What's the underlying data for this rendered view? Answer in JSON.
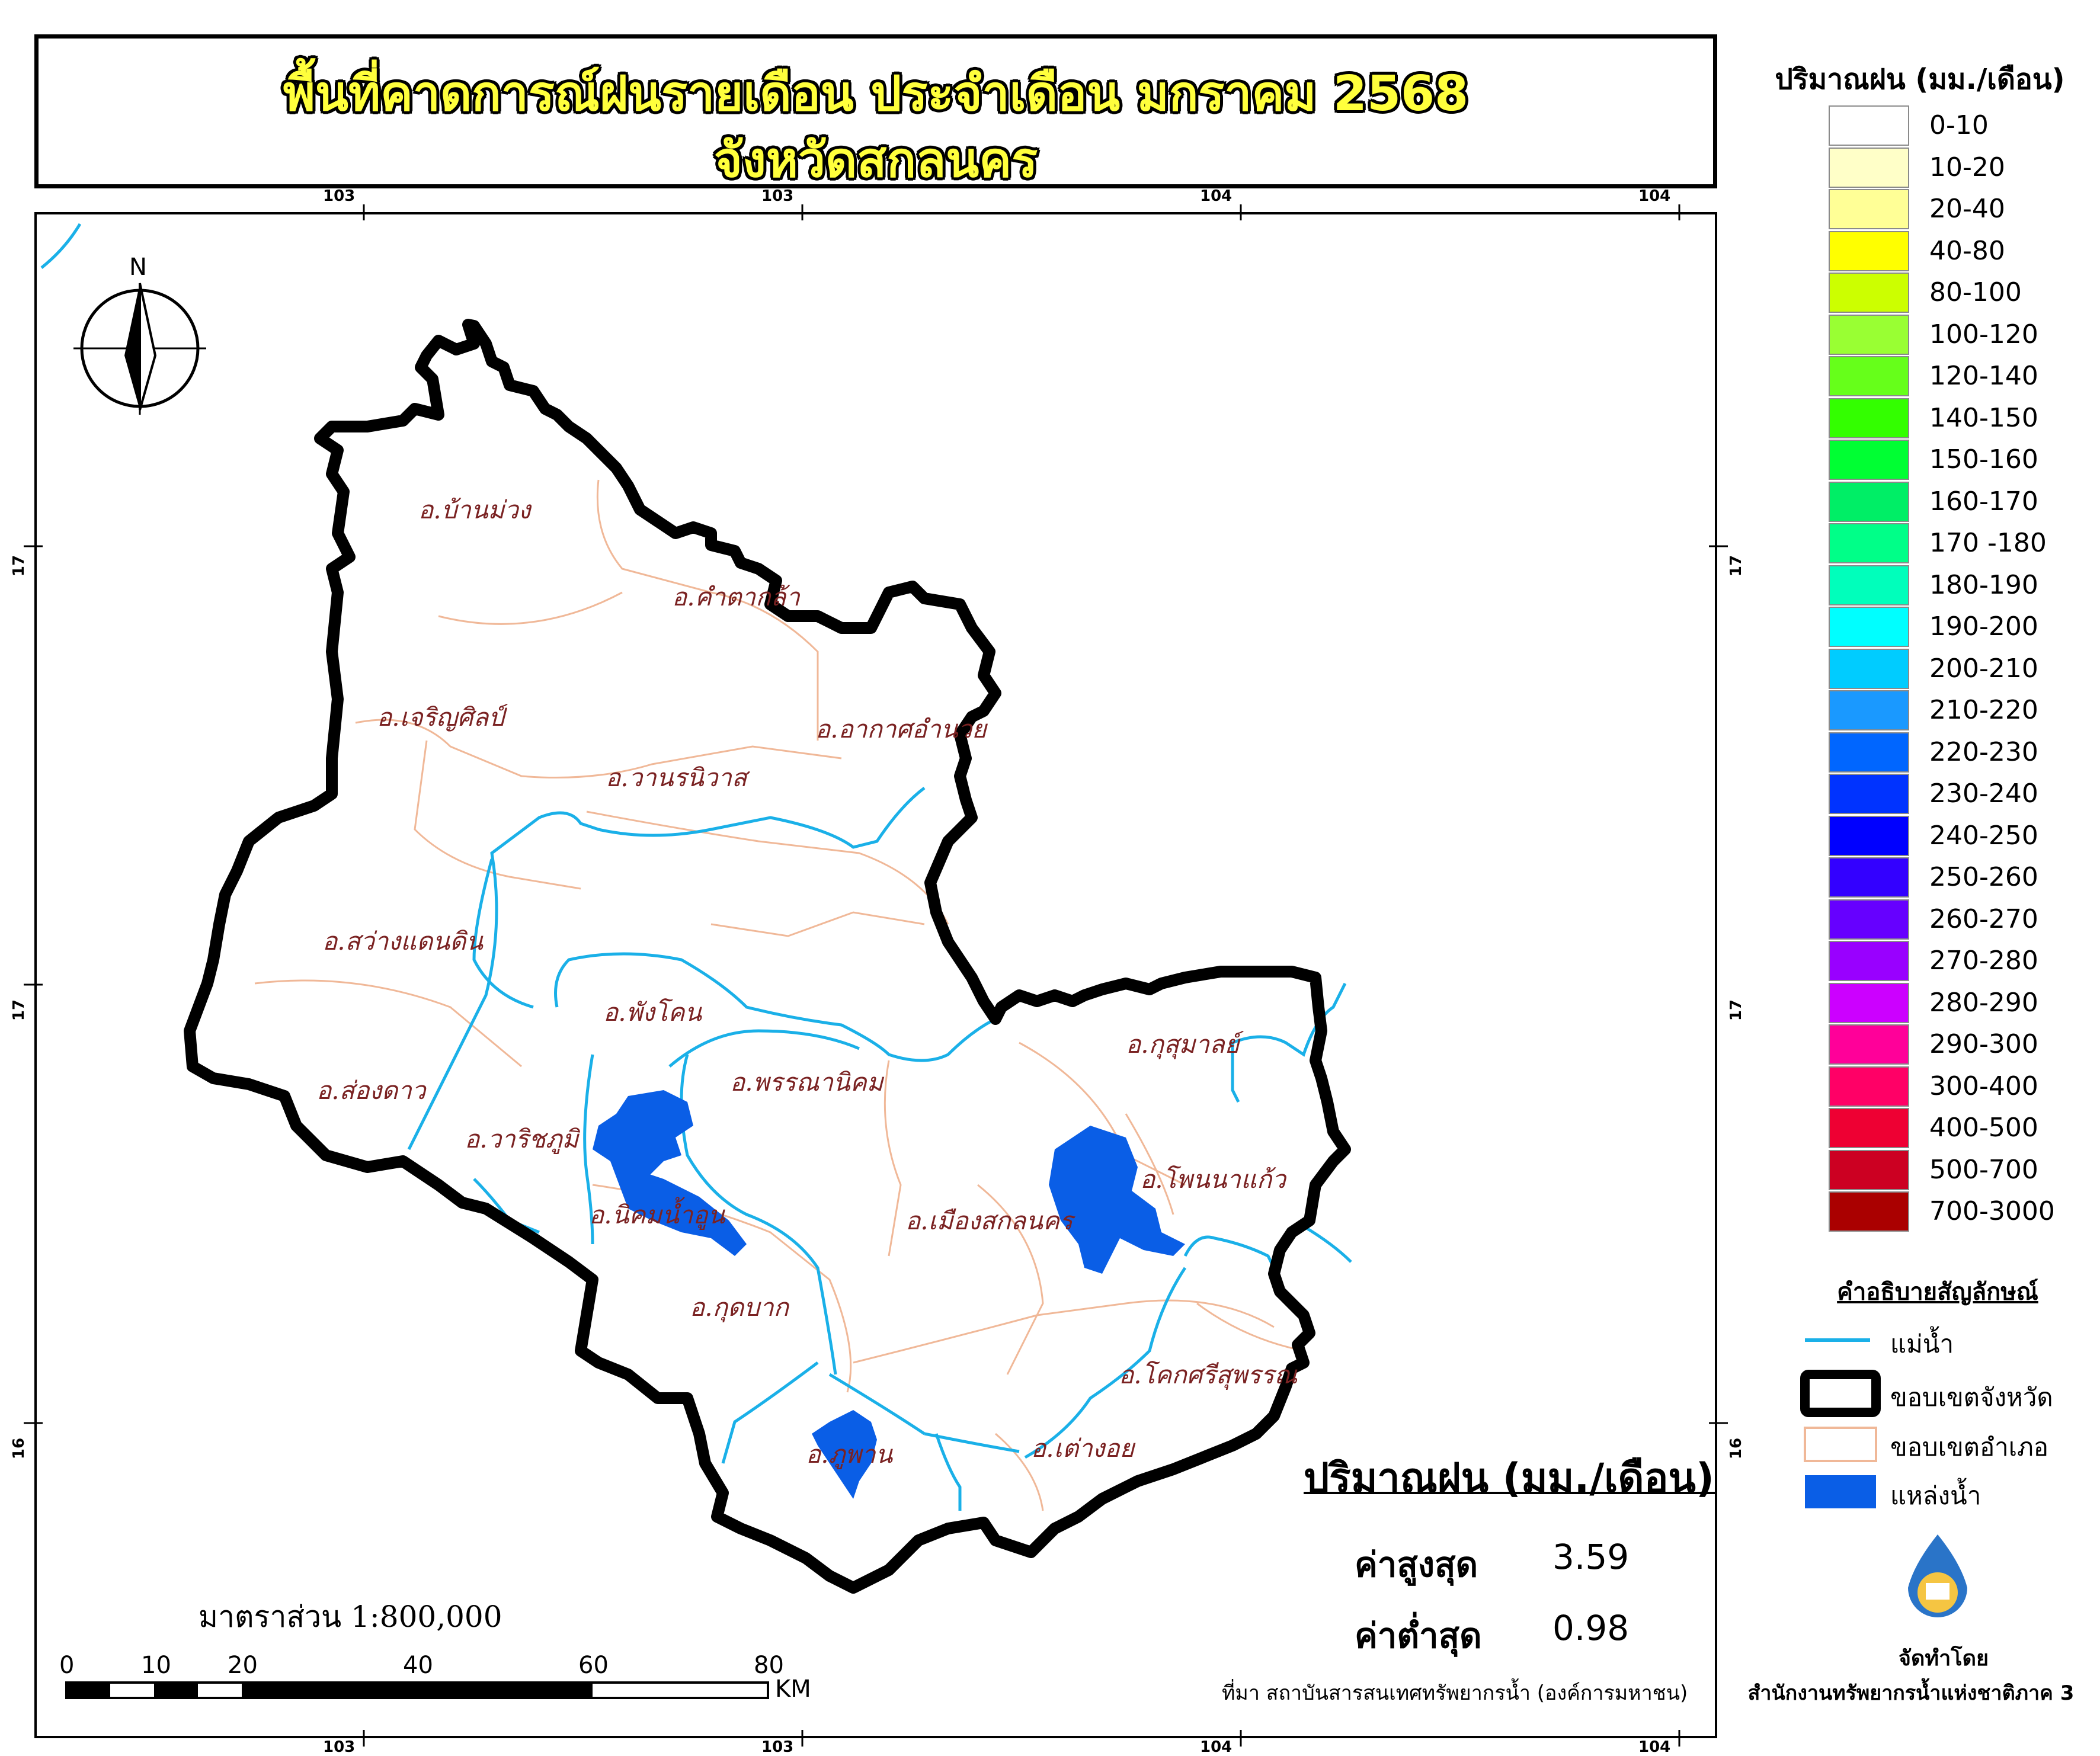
{
  "title": {
    "line1": "พื้นที่คาดการณ์ฝนรายเดือน ประจำเดือน มกราคม 2568",
    "line2": "จังหวัดสกลนคร"
  },
  "grid_labels": {
    "top": [
      "103",
      "103",
      "104",
      "104"
    ],
    "bottom": [
      "103",
      "103",
      "104",
      "104"
    ],
    "left": [
      "17",
      "17",
      "16"
    ],
    "right": [
      "17",
      "17",
      "16"
    ]
  },
  "north_arrow": {
    "label": "N"
  },
  "districts": [
    "อ.บ้านม่วง",
    "อ.คำตากล้า",
    "อ.เจริญศิลป์",
    "อ.อากาศอำนวย",
    "อ.วานรนิวาส",
    "อ.สว่างแดนดิน",
    "อ.พังโคน",
    "อ.ส่องดาว",
    "อ.พรรณานิคม",
    "อ.กุสุมาลย์",
    "อ.วาริชภูมิ",
    "อ.นิคมน้ำอูน",
    "อ.โพนนาแก้ว",
    "อ.เมืองสกลนคร",
    "อ.กุดบาก",
    "อ.โคกศรีสุพรรณ",
    "อ.ภูพาน",
    "อ.เต่างอย"
  ],
  "rain_legend": {
    "title": "ปริมาณฝน (มม./เดือน)",
    "items": [
      {
        "label": "0-10",
        "color": "#ffffff"
      },
      {
        "label": "10-20",
        "color": "#ffffc8"
      },
      {
        "label": "20-40",
        "color": "#ffff96"
      },
      {
        "label": "40-80",
        "color": "#ffff00"
      },
      {
        "label": "80-100",
        "color": "#ccff00"
      },
      {
        "label": "100-120",
        "color": "#99ff33"
      },
      {
        "label": "120-140",
        "color": "#66ff1a"
      },
      {
        "label": "140-150",
        "color": "#33ff00"
      },
      {
        "label": "150-160",
        "color": "#00ff33"
      },
      {
        "label": "160-170",
        "color": "#00ee66"
      },
      {
        "label": "170 -180",
        "color": "#00ff88"
      },
      {
        "label": "180-190",
        "color": "#00ffbb"
      },
      {
        "label": "190-200",
        "color": "#00ffff"
      },
      {
        "label": "200-210",
        "color": "#00ccff"
      },
      {
        "label": "210-220",
        "color": "#1a99ff"
      },
      {
        "label": "220-230",
        "color": "#0066ff"
      },
      {
        "label": "230-240",
        "color": "#0033ff"
      },
      {
        "label": "240-250",
        "color": "#0000ff"
      },
      {
        "label": "250-260",
        "color": "#3300ff"
      },
      {
        "label": "260-270",
        "color": "#6600ff"
      },
      {
        "label": "270-280",
        "color": "#9900ff"
      },
      {
        "label": "280-290",
        "color": "#cc00ff"
      },
      {
        "label": "290-300",
        "color": "#ff0099"
      },
      {
        "label": "300-400",
        "color": "#ff0066"
      },
      {
        "label": "400-500",
        "color": "#ee0033"
      },
      {
        "label": "500-700",
        "color": "#cc0022"
      },
      {
        "label": "700-3000",
        "color": "#aa0000"
      }
    ]
  },
  "symbol_legend": {
    "title": "คำอธิบายสัญลักษณ์",
    "river": "แม่น้ำ",
    "province_boundary": "ขอบเขตจังหวัด",
    "district_boundary": "ขอบเขตอำเภอ",
    "water_body": "แหล่งน้ำ"
  },
  "colors": {
    "river": "#1ab0e8",
    "water_body": "#0a5ee6",
    "district_boundary": "#f0b898",
    "province_boundary": "#000000"
  },
  "stats": {
    "title": "ปริมาณฝน (มม./เดือน)",
    "max_label": "ค่าสูงสุด",
    "max_value": "3.59",
    "min_label": "ค่าต่ำสุด",
    "min_value": "0.98"
  },
  "scale": {
    "text": "มาตราส่วน 1:800,000",
    "ticks": [
      "0",
      "10",
      "20",
      "40",
      "60",
      "80"
    ],
    "unit": "KM"
  },
  "source": "ที่มา  สถาบันสารสนเทศทรัพยากรน้ำ (องค์การมหาชน)",
  "credit": {
    "made_by": "จัดทำโดย",
    "agency": "สำนักงานทรัพยากรน้ำแห่งชาติภาค 3"
  }
}
